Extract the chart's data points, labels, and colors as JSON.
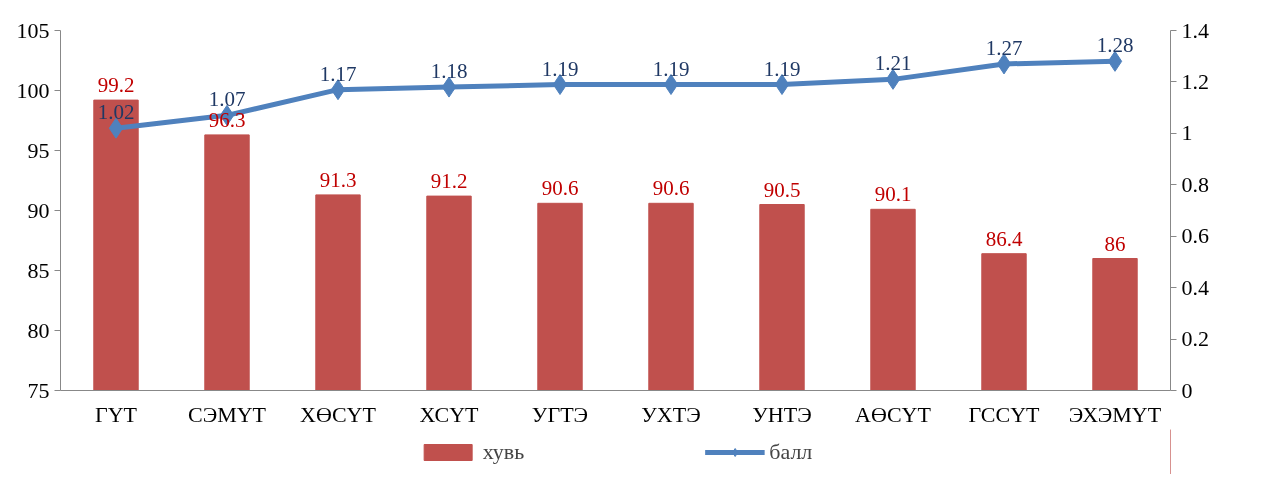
{
  "chart_data": {
    "type": "bar",
    "categories": [
      "ГҮТ",
      "СЭМҮТ",
      "ХӨСҮТ",
      "ХСҮТ",
      "УГТЭ",
      "УХТЭ",
      "УНТЭ",
      "АӨСҮТ",
      "ГССҮТ",
      "ЭХЭМҮТ"
    ],
    "series": [
      {
        "name": "хувь",
        "color": "#c0504d",
        "values": [
          99.2,
          96.3,
          91.3,
          91.2,
          90.6,
          90.6,
          90.5,
          90.1,
          86.4,
          86
        ]
      },
      {
        "name": "балл",
        "type": "line",
        "axis": "y2",
        "color": "#4f81bd",
        "marker": "diamond",
        "values": [
          1.02,
          1.07,
          1.17,
          1.18,
          1.19,
          1.19,
          1.19,
          1.21,
          1.27,
          1.28
        ]
      }
    ],
    "ylim": [
      75,
      105
    ],
    "yticks": [
      75,
      80,
      85,
      90,
      95,
      100,
      105
    ],
    "y2lim": [
      0,
      1.4
    ],
    "y2ticks": [
      0,
      0.2,
      0.4,
      0.6,
      0.8,
      1,
      1.2,
      1.4
    ],
    "data_labels": true,
    "grid": false,
    "legend": "bottom"
  }
}
